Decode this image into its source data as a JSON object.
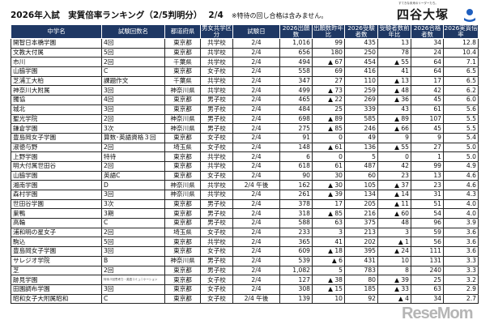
{
  "header": {
    "title": "2026年入試　実質倍率ランキング（2/5判明分）",
    "date": "2/4",
    "note": "※特待の回し合格は含みません。"
  },
  "logo": {
    "tagline": "すてきな未来のリーダーたち。",
    "name": "四谷大塚",
    "color": "#1f5fbf"
  },
  "watermark": "ReseMom",
  "colors": {
    "header_bg": "#1f3864",
    "header_text": "#ffffff"
  },
  "table": {
    "columns": [
      "中学名",
      "試験回数名",
      "都道府県",
      "男女共学区分",
      "試験日",
      "2026出願数",
      "出願数昨年比",
      "2026受験者数",
      "受験者数前年比",
      "2026合格者数",
      "2026実質倍率"
    ],
    "rows": [
      [
        "開智日本橋学園",
        "4回",
        "東京都",
        "共学校",
        "2/4",
        "1,016",
        "99",
        "435",
        "13",
        "34",
        "12.8"
      ],
      [
        "文教大付属",
        "5回",
        "東京都",
        "共学校",
        "2/4",
        "656",
        "180",
        "250",
        "78",
        "24",
        "10.4"
      ],
      [
        "市川",
        "2回",
        "千葉県",
        "共学校",
        "2/4",
        "494",
        "▲ 67",
        "454",
        "▲ 55",
        "64",
        "7.1"
      ],
      [
        "山脇学園",
        "C",
        "東京都",
        "女子校",
        "2/4",
        "558",
        "69",
        "416",
        "41",
        "64",
        "6.5"
      ],
      [
        "芝浦工大柏",
        "課題作文",
        "千葉県",
        "共学校",
        "2/4",
        "347",
        "27",
        "110",
        "▲ 13",
        "17",
        "6.5"
      ],
      [
        "神奈川大附属",
        "3回",
        "神奈川県",
        "共学校",
        "2/4",
        "499",
        "▲ 73",
        "259",
        "▲ 48",
        "42",
        "6.2"
      ],
      [
        "獨協",
        "4回",
        "東京都",
        "男子校",
        "2/4",
        "465",
        "▲ 22",
        "269",
        "▲ 36",
        "45",
        "6.0"
      ],
      [
        "城北",
        "3回",
        "東京都",
        "男子校",
        "2/4",
        "484",
        "25",
        "339",
        "43",
        "61",
        "5.6"
      ],
      [
        "聖光学院",
        "2回",
        "神奈川県",
        "男子校",
        "2/4",
        "698",
        "▲ 89",
        "585",
        "▲ 89",
        "107",
        "5.5"
      ],
      [
        "鎌倉学園",
        "3次",
        "神奈川県",
        "男子校",
        "2/4",
        "275",
        "▲ 85",
        "246",
        "▲ 66",
        "45",
        "5.5"
      ],
      [
        "豊島岡女子学園",
        "算数･英語資格３回",
        "東京都",
        "女子校",
        "2/4",
        "91",
        "0",
        "49",
        "9",
        "9",
        "5.4"
      ],
      [
        "淑徳与野",
        "2回",
        "埼玉県",
        "女子校",
        "2/4",
        "148",
        "▲ 61",
        "136",
        "▲ 55",
        "27",
        "5.0"
      ],
      [
        "上野学園",
        "特待",
        "東京都",
        "共学校",
        "2/4",
        "6",
        "0",
        "5",
        "0",
        "1",
        "5.0"
      ],
      [
        "明大付属世田谷",
        "2回",
        "東京都",
        "共学校",
        "2/4",
        "618",
        "61",
        "487",
        "42",
        "99",
        "4.9"
      ],
      [
        "山脇学園",
        "英語C",
        "東京都",
        "女子校",
        "2/4",
        "90",
        "30",
        "60",
        "23",
        "13",
        "4.6"
      ],
      [
        "湘南学園",
        "D",
        "神奈川県",
        "共学校",
        "2/4 午後",
        "162",
        "▲ 30",
        "105",
        "▲ 37",
        "23",
        "4.6"
      ],
      [
        "森村学園",
        "3回",
        "神奈川県",
        "共学校",
        "2/4",
        "261",
        "▲ 39",
        "134",
        "▲ 14",
        "31",
        "4.3"
      ],
      [
        "世田谷学園",
        "3次",
        "東京都",
        "男子校",
        "2/4",
        "378",
        "17",
        "205",
        "▲ 11",
        "51",
        "4.0"
      ],
      [
        "巣鴨",
        "3期",
        "東京都",
        "男子校",
        "2/4",
        "318",
        "▲ 85",
        "216",
        "▲ 60",
        "54",
        "4.0"
      ],
      [
        "高輪",
        "C",
        "東京都",
        "男子校",
        "2/4",
        "588",
        "63",
        "375",
        "48",
        "96",
        "3.9"
      ],
      [
        "浦和明の星女子",
        "2回",
        "埼玉県",
        "女子校",
        "2/4",
        "233",
        "3",
        "213",
        "3",
        "59",
        "3.6"
      ],
      [
        "駒込",
        "5回",
        "東京都",
        "共学校",
        "2/4",
        "365",
        "41",
        "202",
        "▲ 1",
        "56",
        "3.6"
      ],
      [
        "豊島岡女子学園",
        "3回",
        "東京都",
        "女子校",
        "2/4",
        "609",
        "▲ 18",
        "395",
        "▲ 24",
        "111",
        "3.6"
      ],
      [
        "サレジオ学院",
        "B",
        "神奈川県",
        "男子校",
        "2/4",
        "539",
        "▲ 6",
        "431",
        "10",
        "131",
        "3.3"
      ],
      [
        "芝",
        "2回",
        "東京都",
        "男子校",
        "2/4",
        "1,082",
        "5",
        "783",
        "8",
        "240",
        "3.3"
      ],
      [
        "跡見学園",
        "特待３回思考力・英語コミュニケーション",
        "東京都",
        "女子校",
        "2/4",
        "127",
        "▲ 38",
        "80",
        "▲ 39",
        "25",
        "3.2"
      ],
      [
        "田園調布学園",
        "3回",
        "東京都",
        "女子校",
        "2/4",
        "308",
        "▲ 15",
        "185",
        "▲ 33",
        "63",
        "2.9"
      ],
      [
        "昭和女子大附属昭和",
        "C",
        "東京都",
        "女子校",
        "2/4 午後",
        "139",
        "10",
        "92",
        "▲ 4",
        "34",
        "2.7"
      ]
    ]
  }
}
